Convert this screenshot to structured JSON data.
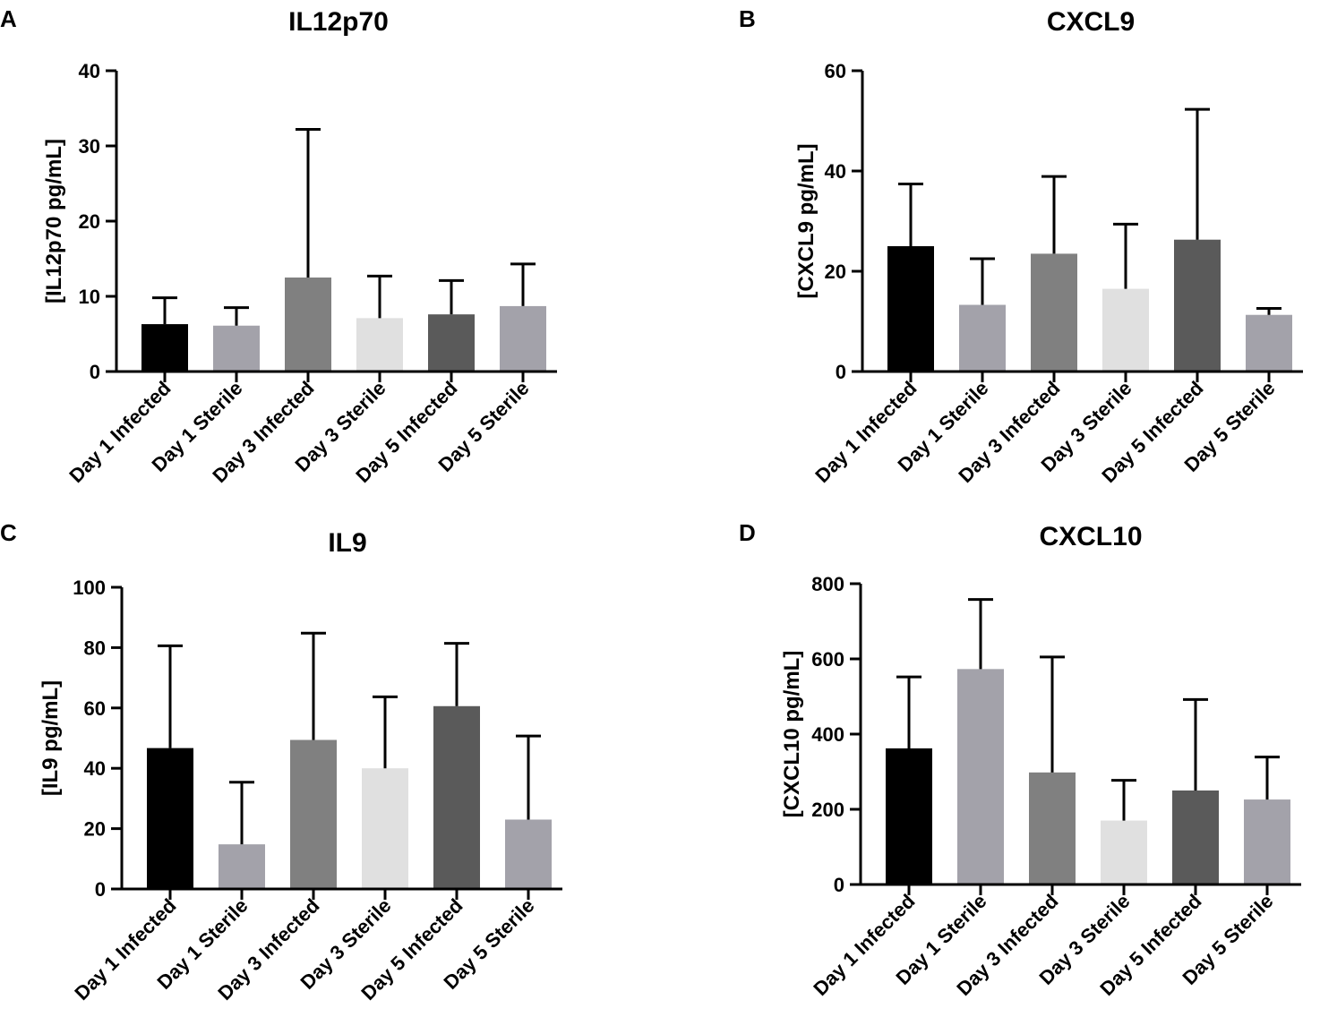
{
  "categories": [
    "Day 1 Infected",
    "Day 1 Sterile",
    "Day 3 Infected",
    "Day 3 Sterile",
    "Day 5 Infected",
    "Day 5 Sterile"
  ],
  "bar_colors": [
    "#000000",
    "#a3a2aa",
    "#808080",
    "#e0e0e0",
    "#5a5a5a",
    "#a3a2aa"
  ],
  "chart_data": [
    {
      "panel": "A",
      "type": "bar",
      "title": "IL12p70",
      "ylabel": "[IL12p70 pg/mL]",
      "xlabel": "",
      "ylim": [
        0,
        40
      ],
      "yticks": [
        0,
        10,
        20,
        30,
        40
      ],
      "categories": [
        "Day 1 Infected",
        "Day 1 Sterile",
        "Day 3 Infected",
        "Day 3 Sterile",
        "Day 5 Infected",
        "Day 5 Sterile"
      ],
      "values": [
        6.3,
        6.1,
        12.5,
        7.1,
        7.6,
        8.7
      ],
      "errors": [
        3.5,
        2.4,
        19.7,
        5.6,
        4.5,
        5.6
      ]
    },
    {
      "panel": "B",
      "type": "bar",
      "title": "CXCL9",
      "ylabel": "[CXCL9 pg/mL]",
      "xlabel": "",
      "ylim": [
        0,
        60
      ],
      "yticks": [
        0,
        20,
        40,
        60
      ],
      "categories": [
        "Day 1 Infected",
        "Day 1 Sterile",
        "Day 3 Infected",
        "Day 3 Sterile",
        "Day 5 Infected",
        "Day 5 Sterile"
      ],
      "values": [
        25,
        13.3,
        23.5,
        16.5,
        26.3,
        11.3
      ],
      "errors": [
        12.4,
        9.2,
        15.4,
        12.9,
        26,
        1.3
      ]
    },
    {
      "panel": "C",
      "type": "bar",
      "title": "IL9",
      "ylabel": "[IL9 pg/mL]",
      "xlabel": "",
      "ylim": [
        0,
        100
      ],
      "yticks": [
        0,
        20,
        40,
        60,
        80,
        100
      ],
      "categories": [
        "Day 1 Infected",
        "Day 1 Sterile",
        "Day 3 Infected",
        "Day 3 Sterile",
        "Day 5 Infected",
        "Day 5 Sterile"
      ],
      "values": [
        46.7,
        14.8,
        49.4,
        40,
        60.6,
        23
      ],
      "errors": [
        33.9,
        20.6,
        35.4,
        23.7,
        20.8,
        27.7
      ]
    },
    {
      "panel": "D",
      "type": "bar",
      "title": "CXCL10",
      "ylabel": "[CXCL10 pg/mL]",
      "xlabel": "",
      "ylim": [
        0,
        800
      ],
      "yticks": [
        0,
        200,
        400,
        600,
        800
      ],
      "categories": [
        "Day 1 Infected",
        "Day 1 Sterile",
        "Day 3 Infected",
        "Day 3 Sterile",
        "Day 5 Infected",
        "Day 5 Sterile"
      ],
      "values": [
        362,
        573,
        298,
        170,
        250,
        226
      ],
      "errors": [
        190,
        185,
        307,
        107,
        242,
        113
      ]
    }
  ]
}
